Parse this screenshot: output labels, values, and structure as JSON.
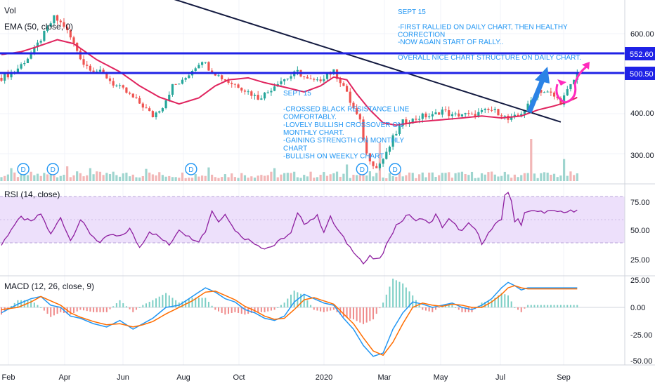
{
  "chart_data": {
    "type": "candlestick",
    "x_labels": [
      "Feb",
      "Apr",
      "Jun",
      "Aug",
      "Oct",
      "2020",
      "Mar",
      "May",
      "Jul",
      "Sep"
    ],
    "main": {
      "indicators": [
        "Vol",
        "EMA (50, close, 0)"
      ],
      "y_ticks": [
        "600.00",
        "500.00",
        "400.00",
        "300.00"
      ],
      "price_tags": [
        "552.60",
        "500.50"
      ],
      "horizontal_levels": [
        552.6,
        500.5
      ],
      "close_path": [
        [
          0,
          490
        ],
        [
          4,
          505
        ],
        [
          8,
          540
        ],
        [
          10,
          560
        ],
        [
          13,
          600
        ],
        [
          16,
          640
        ],
        [
          19,
          620
        ],
        [
          22,
          575
        ],
        [
          25,
          525
        ],
        [
          28,
          510
        ],
        [
          31,
          500
        ],
        [
          34,
          475
        ],
        [
          37,
          460
        ],
        [
          40,
          440
        ],
        [
          43,
          420
        ],
        [
          46,
          395
        ],
        [
          49,
          420
        ],
        [
          52,
          470
        ],
        [
          55,
          480
        ],
        [
          58,
          510
        ],
        [
          61,
          535
        ],
        [
          63,
          515
        ],
        [
          66,
          495
        ],
        [
          69,
          480
        ],
        [
          72,
          470
        ],
        [
          75,
          455
        ],
        [
          78,
          440
        ],
        [
          81,
          455
        ],
        [
          84,
          480
        ],
        [
          87,
          490
        ],
        [
          90,
          505
        ],
        [
          93,
          485
        ],
        [
          96,
          480
        ],
        [
          99,
          500
        ],
        [
          101,
          505
        ],
        [
          104,
          470
        ],
        [
          106,
          430
        ],
        [
          109,
          380
        ],
        [
          111,
          300
        ],
        [
          114,
          265
        ],
        [
          117,
          300
        ],
        [
          119,
          340
        ],
        [
          122,
          380
        ],
        [
          125,
          385
        ],
        [
          128,
          395
        ],
        [
          131,
          395
        ],
        [
          134,
          410
        ],
        [
          137,
          395
        ],
        [
          140,
          400
        ],
        [
          143,
          395
        ],
        [
          146,
          405
        ],
        [
          149,
          410
        ],
        [
          152,
          400
        ],
        [
          154,
          385
        ],
        [
          157,
          395
        ],
        [
          160,
          420
        ],
        [
          163,
          460
        ],
        [
          165,
          455
        ],
        [
          167,
          450
        ],
        [
          170,
          430
        ],
        [
          173,
          470
        ],
        [
          175,
          500
        ]
      ],
      "ema_path": [
        [
          0,
          548
        ],
        [
          6,
          555
        ],
        [
          11,
          568
        ],
        [
          17,
          585
        ],
        [
          22,
          575
        ],
        [
          29,
          535
        ],
        [
          36,
          505
        ],
        [
          42,
          470
        ],
        [
          48,
          442
        ],
        [
          54,
          425
        ],
        [
          60,
          440
        ],
        [
          65,
          470
        ],
        [
          69,
          485
        ],
        [
          75,
          490
        ],
        [
          80,
          478
        ],
        [
          87,
          465
        ],
        [
          92,
          455
        ],
        [
          97,
          470
        ],
        [
          101,
          492
        ],
        [
          105,
          485
        ],
        [
          108,
          450
        ],
        [
          112,
          410
        ],
        [
          116,
          378
        ],
        [
          120,
          372
        ],
        [
          126,
          380
        ],
        [
          133,
          385
        ],
        [
          140,
          390
        ],
        [
          146,
          395
        ],
        [
          152,
          390
        ],
        [
          158,
          395
        ],
        [
          163,
          410
        ],
        [
          168,
          420
        ],
        [
          172,
          430
        ],
        [
          176,
          445
        ]
      ],
      "resistance_line": [
        [
          47,
          700
        ],
        [
          170,
          380
        ]
      ],
      "dividend_markers": [
        6,
        15,
        57,
        109,
        119
      ],
      "volume_spikes": [
        [
          3,
          0.2
        ],
        [
          20,
          0.25
        ],
        [
          27,
          0.2
        ],
        [
          44,
          0.18
        ],
        [
          63,
          0.22
        ],
        [
          83,
          0.2
        ],
        [
          105,
          0.3
        ],
        [
          115,
          0.9
        ],
        [
          161,
          1.0
        ],
        [
          171,
          0.45
        ]
      ],
      "annotations": [
        [
          "SEPT 15",
          "",
          "-FIRST RALLIED ON DAILY CHART, THEN HEALTHY",
          "CORRECTION",
          "-NOW AGAIN START OF RALLY..",
          "",
          "OVERALL NICE CHART STRUCTURE ON DAILY CHART."
        ],
        [
          "SEPT 15",
          "",
          "-CROSSED  BLACK RESISTANCE LINE",
          "COMFORTABLY.",
          "-LOVELY BULLISH CROSSOVER ON",
          "MONTHLY CHART.",
          "-GAINING STRENGTH ON MONTHLY",
          "CHART",
          "-BULLISH ON WEEKLY CHART"
        ]
      ],
      "divider": "D"
    },
    "rsi": {
      "label": "RSI (14, close)",
      "y_ticks": [
        "75.00",
        "50.00",
        "25.00"
      ],
      "bands": [
        80,
        40
      ],
      "path": [
        [
          0,
          38
        ],
        [
          3,
          52
        ],
        [
          6,
          62
        ],
        [
          9,
          58
        ],
        [
          12,
          65
        ],
        [
          15,
          47
        ],
        [
          18,
          62
        ],
        [
          21,
          42
        ],
        [
          24,
          60
        ],
        [
          27,
          48
        ],
        [
          30,
          40
        ],
        [
          33,
          47
        ],
        [
          36,
          45
        ],
        [
          39,
          52
        ],
        [
          42,
          36
        ],
        [
          45,
          50
        ],
        [
          48,
          45
        ],
        [
          51,
          38
        ],
        [
          54,
          52
        ],
        [
          57,
          45
        ],
        [
          60,
          42
        ],
        [
          62,
          50
        ],
        [
          64,
          68
        ],
        [
          66,
          58
        ],
        [
          68,
          66
        ],
        [
          70,
          55
        ],
        [
          72,
          48
        ],
        [
          74,
          44
        ],
        [
          77,
          40
        ],
        [
          80,
          35
        ],
        [
          83,
          38
        ],
        [
          86,
          45
        ],
        [
          88,
          48
        ],
        [
          90,
          65
        ],
        [
          92,
          57
        ],
        [
          94,
          60
        ],
        [
          96,
          63
        ],
        [
          98,
          50
        ],
        [
          100,
          62
        ],
        [
          102,
          52
        ],
        [
          104,
          44
        ],
        [
          106,
          36
        ],
        [
          108,
          30
        ],
        [
          110,
          22
        ],
        [
          112,
          28
        ],
        [
          114,
          25
        ],
        [
          116,
          30
        ],
        [
          118,
          45
        ],
        [
          120,
          55
        ],
        [
          122,
          60
        ],
        [
          124,
          65
        ],
        [
          126,
          58
        ],
        [
          128,
          62
        ],
        [
          130,
          56
        ],
        [
          132,
          64
        ],
        [
          134,
          54
        ],
        [
          136,
          60
        ],
        [
          138,
          55
        ],
        [
          140,
          50
        ],
        [
          142,
          56
        ],
        [
          144,
          52
        ],
        [
          146,
          40
        ],
        [
          148,
          48
        ],
        [
          150,
          55
        ],
        [
          152,
          60
        ],
        [
          153,
          82
        ],
        [
          154,
          84
        ],
        [
          155,
          75
        ],
        [
          156,
          58
        ],
        [
          157,
          62
        ],
        [
          158,
          55
        ],
        [
          159,
          67
        ]
      ]
    },
    "macd": {
      "label": "MACD (12, 26, close, 9)",
      "y_ticks": [
        "25.00",
        "0.00",
        "-25.00",
        "-50.00"
      ],
      "macd_path": [
        [
          0,
          -5
        ],
        [
          5,
          3
        ],
        [
          9,
          8
        ],
        [
          12,
          10
        ],
        [
          15,
          2
        ],
        [
          18,
          0
        ],
        [
          21,
          -8
        ],
        [
          24,
          -10
        ],
        [
          28,
          -15
        ],
        [
          32,
          -18
        ],
        [
          36,
          -12
        ],
        [
          40,
          -20
        ],
        [
          43,
          -15
        ],
        [
          46,
          -10
        ],
        [
          50,
          0
        ],
        [
          54,
          2
        ],
        [
          58,
          10
        ],
        [
          62,
          18
        ],
        [
          65,
          14
        ],
        [
          68,
          8
        ],
        [
          71,
          5
        ],
        [
          74,
          -2
        ],
        [
          77,
          -5
        ],
        [
          80,
          -10
        ],
        [
          83,
          -12
        ],
        [
          86,
          -8
        ],
        [
          89,
          5
        ],
        [
          92,
          12
        ],
        [
          95,
          8
        ],
        [
          98,
          4
        ],
        [
          101,
          2
        ],
        [
          104,
          -10
        ],
        [
          107,
          -20
        ],
        [
          110,
          -35
        ],
        [
          113,
          -45
        ],
        [
          116,
          -42
        ],
        [
          119,
          -20
        ],
        [
          122,
          -5
        ],
        [
          125,
          5
        ],
        [
          128,
          3
        ],
        [
          131,
          0
        ],
        [
          134,
          2
        ],
        [
          137,
          4
        ],
        [
          140,
          0
        ],
        [
          143,
          -2
        ],
        [
          146,
          2
        ],
        [
          149,
          8
        ],
        [
          152,
          18
        ],
        [
          154,
          23
        ],
        [
          156,
          20
        ],
        [
          158,
          16
        ],
        [
          160,
          18
        ]
      ],
      "signal_path": [
        [
          0,
          -2
        ],
        [
          5,
          0
        ],
        [
          9,
          5
        ],
        [
          12,
          10
        ],
        [
          15,
          6
        ],
        [
          18,
          2
        ],
        [
          21,
          -5
        ],
        [
          24,
          -9
        ],
        [
          28,
          -13
        ],
        [
          32,
          -16
        ],
        [
          36,
          -15
        ],
        [
          40,
          -18
        ],
        [
          43,
          -16
        ],
        [
          46,
          -13
        ],
        [
          50,
          -6
        ],
        [
          54,
          0
        ],
        [
          58,
          6
        ],
        [
          62,
          14
        ],
        [
          65,
          15
        ],
        [
          68,
          11
        ],
        [
          71,
          7
        ],
        [
          74,
          1
        ],
        [
          77,
          -3
        ],
        [
          80,
          -8
        ],
        [
          83,
          -11
        ],
        [
          86,
          -10
        ],
        [
          89,
          -2
        ],
        [
          92,
          7
        ],
        [
          95,
          9
        ],
        [
          98,
          6
        ],
        [
          101,
          3
        ],
        [
          104,
          -6
        ],
        [
          107,
          -15
        ],
        [
          110,
          -28
        ],
        [
          113,
          -40
        ],
        [
          116,
          -44
        ],
        [
          119,
          -32
        ],
        [
          122,
          -15
        ],
        [
          125,
          0
        ],
        [
          128,
          4
        ],
        [
          131,
          2
        ],
        [
          134,
          1
        ],
        [
          137,
          3
        ],
        [
          140,
          2
        ],
        [
          143,
          0
        ],
        [
          146,
          0
        ],
        [
          149,
          5
        ],
        [
          152,
          12
        ],
        [
          154,
          18
        ],
        [
          156,
          20
        ],
        [
          158,
          18
        ],
        [
          160,
          17
        ]
      ]
    }
  }
}
